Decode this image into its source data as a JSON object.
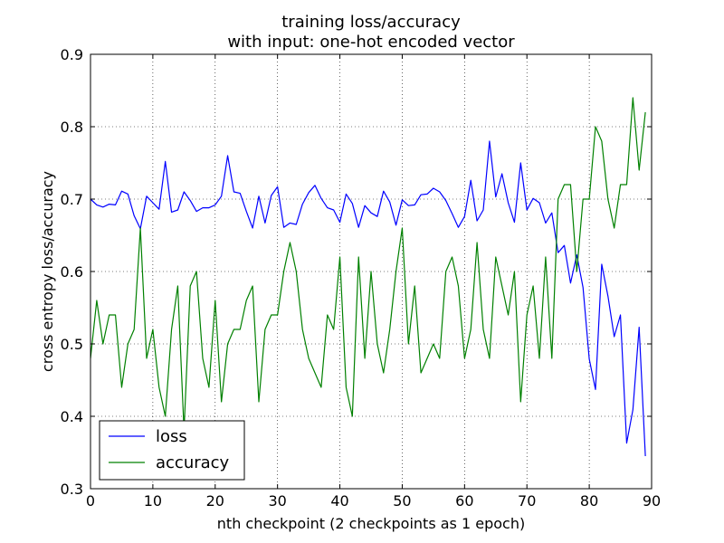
{
  "chart_data": {
    "type": "line",
    "title": "training loss/accuracy",
    "subtitle": "with input: one-hot encoded vector",
    "xlabel": "nth checkpoint (2 checkpoints as 1 epoch)",
    "ylabel": "cross entropy loss/accuracy",
    "xlim": [
      0,
      90
    ],
    "ylim": [
      0.3,
      0.9
    ],
    "xticks": [
      "0",
      "10",
      "20",
      "30",
      "40",
      "50",
      "60",
      "70",
      "80",
      "90"
    ],
    "yticks": [
      "0.3",
      "0.4",
      "0.5",
      "0.6",
      "0.7",
      "0.8",
      "0.9"
    ],
    "grid": true,
    "legend_position": "lower-left",
    "series": [
      {
        "name": "loss",
        "color": "#0000ff",
        "values": [
          0.7,
          0.692,
          0.689,
          0.693,
          0.692,
          0.711,
          0.707,
          0.677,
          0.659,
          0.704,
          0.695,
          0.686,
          0.752,
          0.682,
          0.685,
          0.71,
          0.698,
          0.683,
          0.688,
          0.688,
          0.692,
          0.704,
          0.76,
          0.71,
          0.708,
          0.683,
          0.66,
          0.704,
          0.667,
          0.705,
          0.717,
          0.661,
          0.667,
          0.665,
          0.693,
          0.709,
          0.719,
          0.701,
          0.688,
          0.685,
          0.668,
          0.707,
          0.694,
          0.661,
          0.691,
          0.681,
          0.676,
          0.711,
          0.696,
          0.664,
          0.699,
          0.691,
          0.692,
          0.706,
          0.707,
          0.715,
          0.71,
          0.698,
          0.68,
          0.661,
          0.676,
          0.726,
          0.67,
          0.685,
          0.78,
          0.703,
          0.735,
          0.695,
          0.668,
          0.75,
          0.685,
          0.701,
          0.695,
          0.667,
          0.681,
          0.626,
          0.636,
          0.584,
          0.623,
          0.578,
          0.479,
          0.437,
          0.61,
          0.566,
          0.51,
          0.54,
          0.363,
          0.409,
          0.523,
          0.345
        ]
      },
      {
        "name": "accuracy",
        "color": "#008000",
        "values": [
          0.48,
          0.56,
          0.5,
          0.54,
          0.54,
          0.44,
          0.5,
          0.52,
          0.66,
          0.48,
          0.52,
          0.44,
          0.4,
          0.52,
          0.58,
          0.38,
          0.58,
          0.6,
          0.48,
          0.44,
          0.56,
          0.42,
          0.5,
          0.52,
          0.52,
          0.56,
          0.58,
          0.42,
          0.52,
          0.54,
          0.54,
          0.6,
          0.64,
          0.6,
          0.52,
          0.48,
          0.46,
          0.44,
          0.54,
          0.52,
          0.62,
          0.44,
          0.4,
          0.62,
          0.48,
          0.6,
          0.5,
          0.46,
          0.52,
          0.6,
          0.66,
          0.5,
          0.58,
          0.46,
          0.48,
          0.5,
          0.48,
          0.6,
          0.62,
          0.58,
          0.48,
          0.52,
          0.64,
          0.52,
          0.48,
          0.62,
          0.58,
          0.54,
          0.6,
          0.42,
          0.54,
          0.58,
          0.48,
          0.62,
          0.48,
          0.7,
          0.72,
          0.72,
          0.6,
          0.7,
          0.7,
          0.8,
          0.78,
          0.7,
          0.66,
          0.72,
          0.72,
          0.84,
          0.74,
          0.82
        ]
      }
    ]
  }
}
